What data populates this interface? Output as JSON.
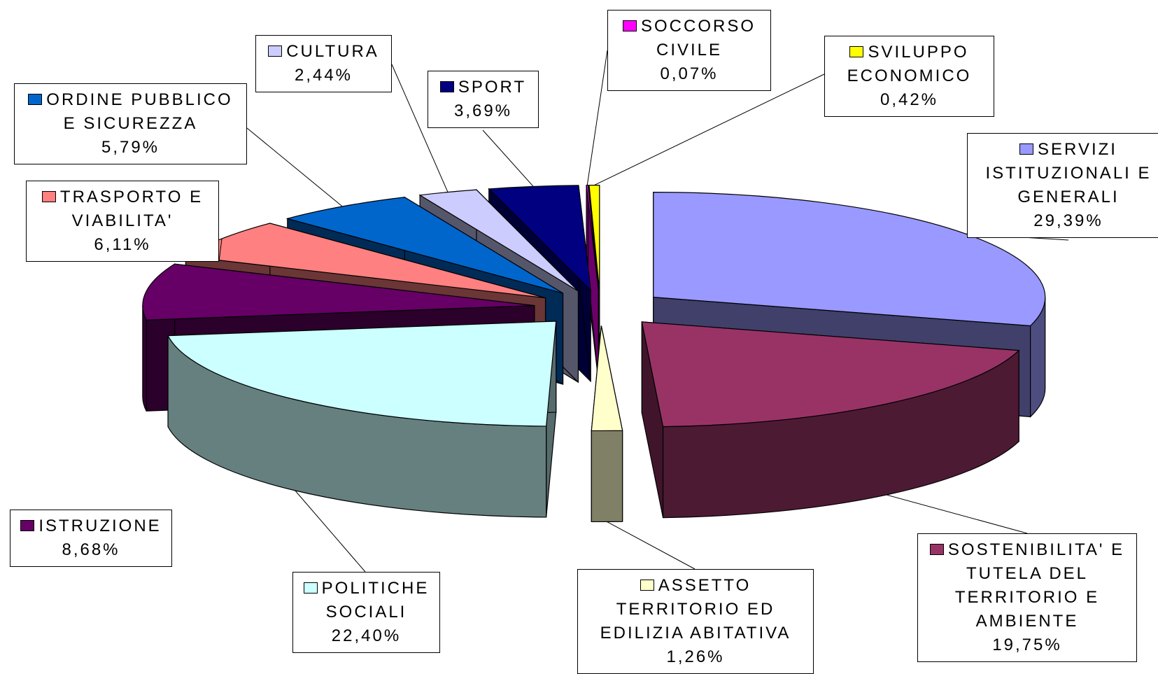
{
  "chart_data": {
    "type": "pie3d",
    "categories": [
      "SERVIZI ISTITUZIONALI E GENERALI",
      "SOSTENIBILITA' E TUTELA DEL TERRITORIO E AMBIENTE",
      "ASSETTO TERRITORIO ED EDILIZIA ABITATIVA",
      "POLITICHE SOCIALI",
      "ISTRUZIONE",
      "TRASPORTO E VIABILITA'",
      "ORDINE PUBBLICO E SICUREZZA",
      "CULTURA",
      "SPORT",
      "SOCCORSO CIVILE",
      "SVILUPPO ECONOMICO"
    ],
    "values": [
      29.39,
      19.75,
      1.26,
      22.4,
      8.68,
      6.11,
      5.79,
      2.44,
      3.69,
      0.07,
      0.42
    ],
    "value_labels": [
      "29,39%",
      "19,75%",
      "1,26%",
      "22,40%",
      "8,68%",
      "6,11%",
      "5,79%",
      "2,44%",
      "3,69%",
      "0,07%",
      "0,42%"
    ],
    "colors": [
      "#9999ff",
      "#993366",
      "#ffffcc",
      "#ccffff",
      "#660066",
      "#ff8080",
      "#0066cc",
      "#ccccff",
      "#000080",
      "#ff00ff",
      "#ffff00"
    ]
  }
}
